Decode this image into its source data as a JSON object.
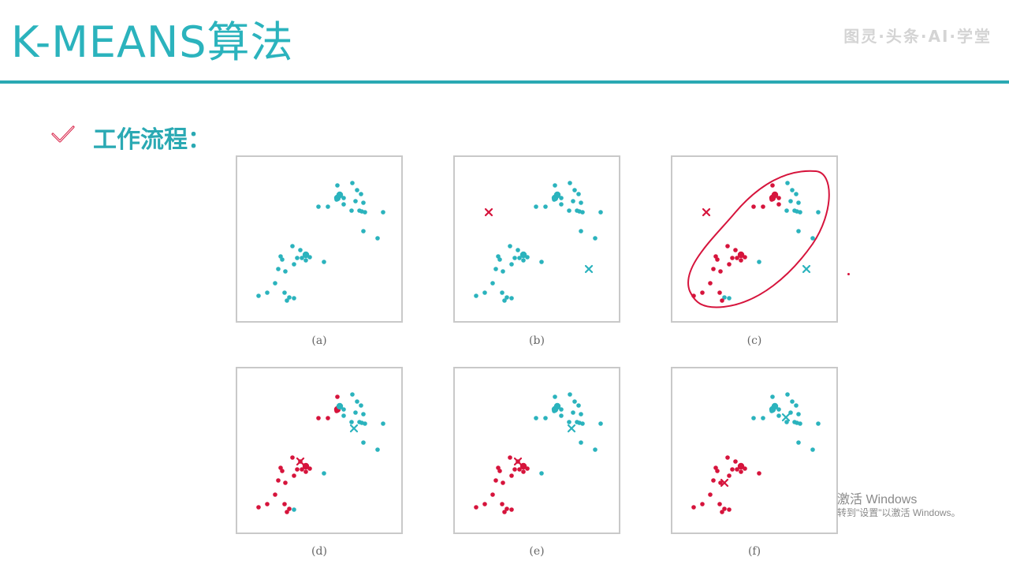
{
  "title": "K-MEANS算法",
  "header_watermark": "图灵·头条·AI·学堂",
  "section": {
    "icon": "check-icon",
    "label": "工作流程："
  },
  "colors": {
    "teal": "#2bb3bd",
    "red": "#d6143c",
    "frame": "#c9c9c9"
  },
  "panels": [
    {
      "caption": "(a)",
      "circled": false
    },
    {
      "caption": "(b)",
      "circled": false
    },
    {
      "caption": "(c)",
      "circled": true
    },
    {
      "caption": "(d)",
      "circled": false
    },
    {
      "caption": "(e)",
      "circled": false
    },
    {
      "caption": "(f)",
      "circled": false
    }
  ],
  "os_watermark": {
    "line1": "激活 Windows",
    "line2": "转到\"设置\"以激活 Windows。"
  }
}
